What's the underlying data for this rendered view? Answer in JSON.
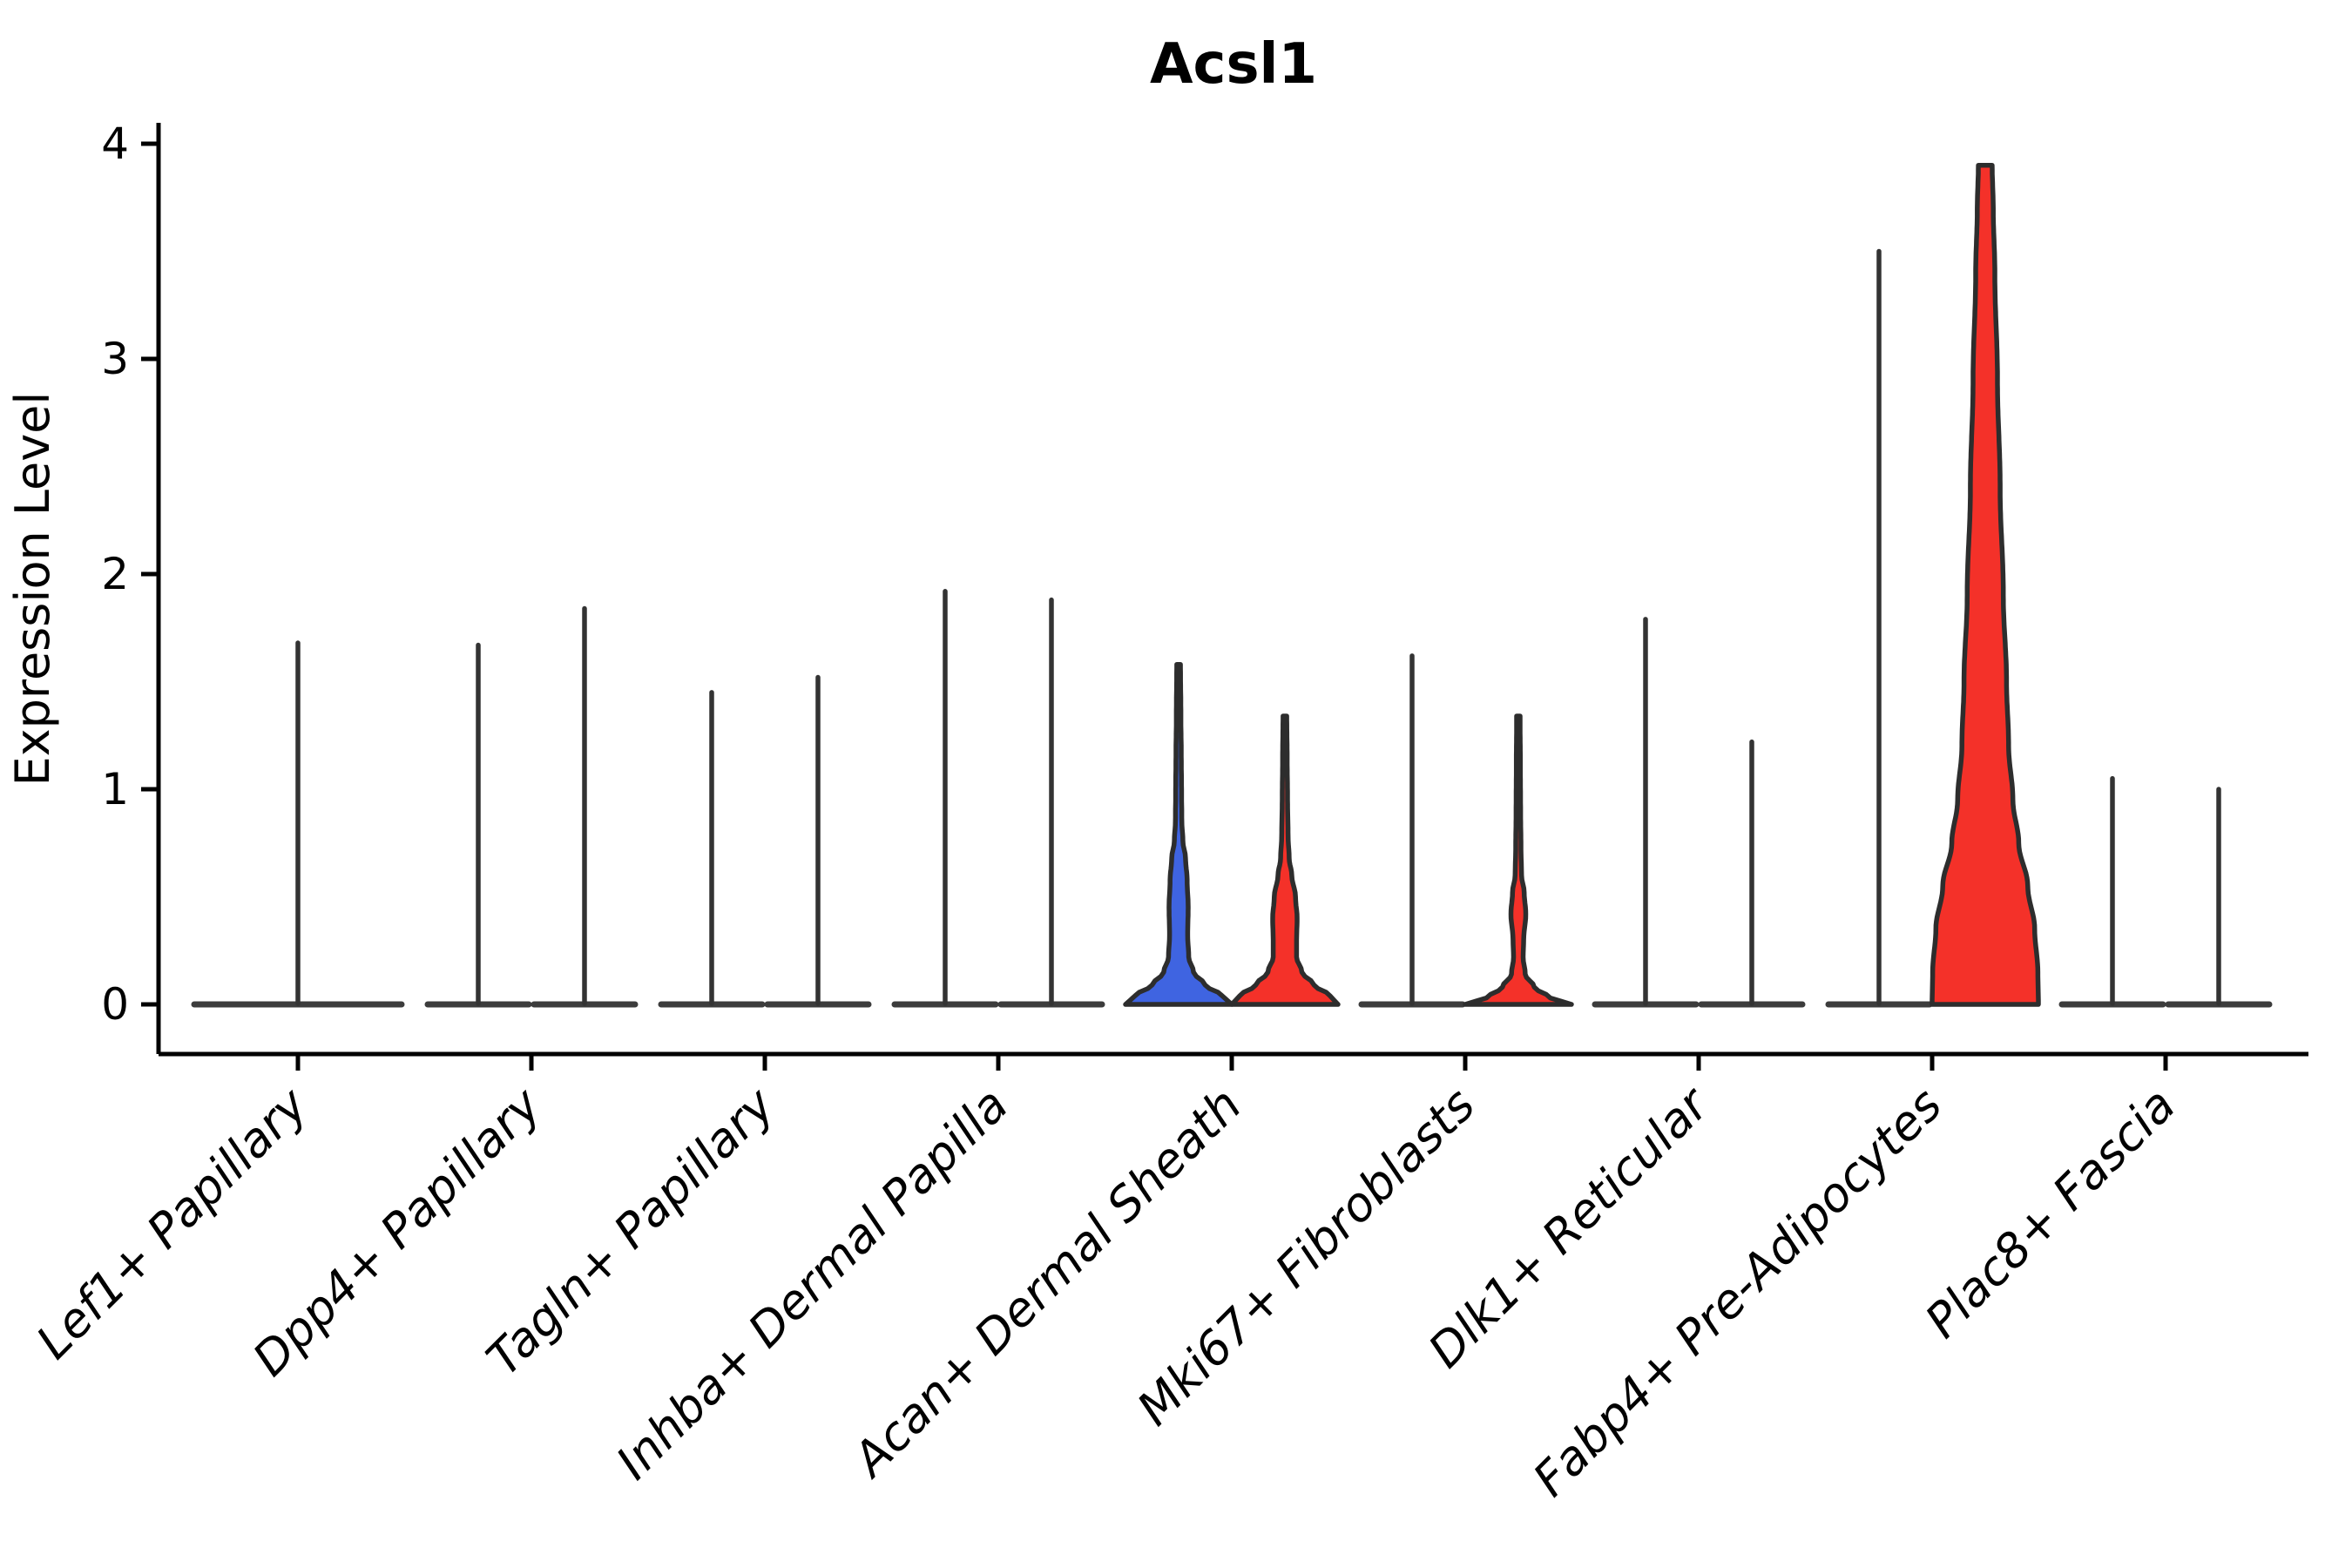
{
  "chart_data": {
    "type": "violin",
    "title": "Acsl1",
    "ylabel": "Expression Level",
    "xlabel": "",
    "ylim": [
      0,
      4
    ],
    "yticks": [
      "0",
      "1",
      "2",
      "3",
      "4"
    ],
    "grid": false,
    "legend": "none",
    "colors": {
      "red": "#F43129",
      "blue": "#3F64E1",
      "outline": "#2D2D2D",
      "baseline": "#3C3C3C",
      "spike": "#333333",
      "axis": "#000000"
    },
    "categories": [
      "Lef1+ Papillary",
      "Dpp4+ Papillary",
      "Tagln+ Papillary",
      "Inhba+ Dermal Papilla",
      "Acan+ Dermal Sheath",
      "Mki67+ Fibroblasts",
      "Dlk1+ Reticular",
      "Fabp4+ Pre-Adipocytes",
      "Plac8+ Fascia"
    ],
    "groups": [
      {
        "category": "Lef1+ Papillary",
        "violins": [
          {
            "kind": "flat",
            "span": 2,
            "max": 1.68,
            "fill": null
          }
        ]
      },
      {
        "category": "Dpp4+ Papillary",
        "violins": [
          {
            "kind": "flat",
            "span": 1,
            "max": 1.67,
            "fill": null
          },
          {
            "kind": "flat",
            "span": 1,
            "max": 1.84,
            "fill": null
          }
        ]
      },
      {
        "category": "Tagln+ Papillary",
        "violins": [
          {
            "kind": "flat",
            "span": 1,
            "max": 1.45,
            "fill": null
          },
          {
            "kind": "flat",
            "span": 1,
            "max": 1.52,
            "fill": null
          }
        ]
      },
      {
        "category": "Inhba+ Dermal Papilla",
        "violins": [
          {
            "kind": "flat",
            "span": 1,
            "max": 1.92,
            "fill": null
          },
          {
            "kind": "flat",
            "span": 1,
            "max": 1.88,
            "fill": null
          }
        ]
      },
      {
        "category": "Acan+ Dermal Sheath",
        "violins": [
          {
            "kind": "body",
            "span": 1,
            "max": 1.58,
            "fill": "blue",
            "profile": [
              [
                0,
                1.0
              ],
              [
                0.04,
                0.82
              ],
              [
                0.09,
                0.5
              ],
              [
                0.15,
                0.28
              ],
              [
                0.22,
                0.19
              ],
              [
                0.32,
                0.17
              ],
              [
                0.45,
                0.18
              ],
              [
                0.58,
                0.16
              ],
              [
                0.68,
                0.13
              ],
              [
                0.76,
                0.08
              ],
              [
                0.85,
                0.06
              ],
              [
                1.0,
                0.055
              ],
              [
                1.15,
                0.05
              ],
              [
                1.35,
                0.042
              ],
              [
                1.58,
                0.035
              ]
            ]
          },
          {
            "kind": "body",
            "span": 1,
            "max": 1.34,
            "fill": "red",
            "profile": [
              [
                0,
                1.0
              ],
              [
                0.04,
                0.85
              ],
              [
                0.09,
                0.55
              ],
              [
                0.15,
                0.32
              ],
              [
                0.22,
                0.22
              ],
              [
                0.3,
                0.22
              ],
              [
                0.4,
                0.23
              ],
              [
                0.5,
                0.2
              ],
              [
                0.6,
                0.13
              ],
              [
                0.68,
                0.08
              ],
              [
                0.78,
                0.06
              ],
              [
                0.95,
                0.05
              ],
              [
                1.15,
                0.042
              ],
              [
                1.34,
                0.035
              ]
            ]
          }
        ]
      },
      {
        "category": "Mki67+ Fibroblasts",
        "violins": [
          {
            "kind": "flat",
            "span": 1,
            "max": 1.62,
            "fill": null
          },
          {
            "kind": "body",
            "span": 1,
            "max": 1.34,
            "fill": "red",
            "profile": [
              [
                0,
                1.0
              ],
              [
                0.03,
                0.6
              ],
              [
                0.08,
                0.3
              ],
              [
                0.14,
                0.13
              ],
              [
                0.22,
                0.09
              ],
              [
                0.3,
                0.1
              ],
              [
                0.42,
                0.14
              ],
              [
                0.52,
                0.11
              ],
              [
                0.6,
                0.06
              ],
              [
                0.72,
                0.05
              ],
              [
                0.9,
                0.042
              ],
              [
                1.1,
                0.038
              ],
              [
                1.34,
                0.032
              ]
            ]
          }
        ]
      },
      {
        "category": "Dlk1+ Reticular",
        "violins": [
          {
            "kind": "flat",
            "span": 1,
            "max": 1.79,
            "fill": null
          },
          {
            "kind": "flat",
            "span": 1,
            "max": 1.22,
            "fill": null
          }
        ]
      },
      {
        "category": "Fabp4+ Pre-Adipocytes",
        "violins": [
          {
            "kind": "flat",
            "span": 1,
            "max": 3.5,
            "fill": null
          },
          {
            "kind": "body",
            "span": 1,
            "max": 3.9,
            "fill": "red",
            "flat_top": true,
            "profile": [
              [
                0,
                1.0
              ],
              [
                0.15,
                0.99
              ],
              [
                0.35,
                0.93
              ],
              [
                0.55,
                0.8
              ],
              [
                0.75,
                0.63
              ],
              [
                0.95,
                0.52
              ],
              [
                1.2,
                0.44
              ],
              [
                1.5,
                0.4
              ],
              [
                1.9,
                0.34
              ],
              [
                2.4,
                0.28
              ],
              [
                2.9,
                0.23
              ],
              [
                3.4,
                0.18
              ],
              [
                3.7,
                0.15
              ],
              [
                3.9,
                0.13
              ]
            ]
          }
        ]
      },
      {
        "category": "Plac8+ Fascia",
        "violins": [
          {
            "kind": "flat",
            "span": 1,
            "max": 1.05,
            "fill": null
          },
          {
            "kind": "flat",
            "span": 1,
            "max": 1.0,
            "fill": null
          }
        ]
      }
    ]
  }
}
